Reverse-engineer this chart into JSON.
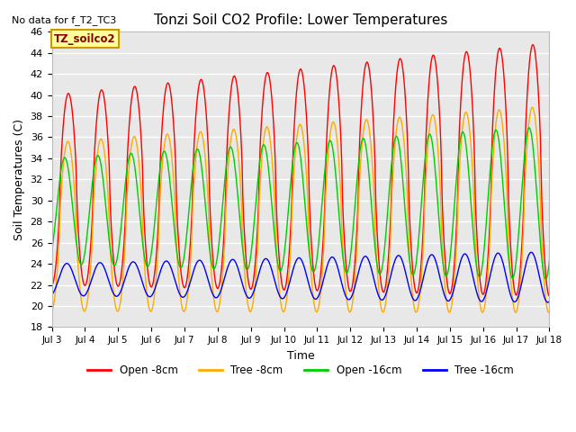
{
  "title": "Tonzi Soil CO2 Profile: Lower Temperatures",
  "subtitle": "No data for f_T2_TC3",
  "ylabel": "Soil Temperatures (C)",
  "xlabel": "Time",
  "ylim": [
    18,
    46
  ],
  "yticks": [
    18,
    20,
    22,
    24,
    26,
    28,
    30,
    32,
    34,
    36,
    38,
    40,
    42,
    44,
    46
  ],
  "xtick_labels": [
    "Jul 3",
    "Jul 4",
    "Jul 5",
    "Jul 6",
    "Jul 7",
    "Jul 8",
    "Jul 9",
    "Jul 10",
    "Jul 11",
    "Jul 12",
    "Jul 13",
    "Jul 14",
    "Jul 15",
    "Jul 16",
    "Jul 17",
    "Jul 18"
  ],
  "bg_color": "#e8e8e8",
  "grid_color": "#ffffff",
  "legend_label": "TZ_soilco2",
  "legend_box_color": "#ffff99",
  "legend_border_color": "#cc9900",
  "series": {
    "open_8cm": {
      "color": "#ff0000",
      "label": "Open -8cm"
    },
    "tree_8cm": {
      "color": "#ffaa00",
      "label": "Tree -8cm"
    },
    "open_16cm": {
      "color": "#00cc00",
      "label": "Open -16cm"
    },
    "tree_16cm": {
      "color": "#0000ff",
      "label": "Tree -16cm"
    }
  },
  "n_days": 15,
  "pts_per_day": 48
}
